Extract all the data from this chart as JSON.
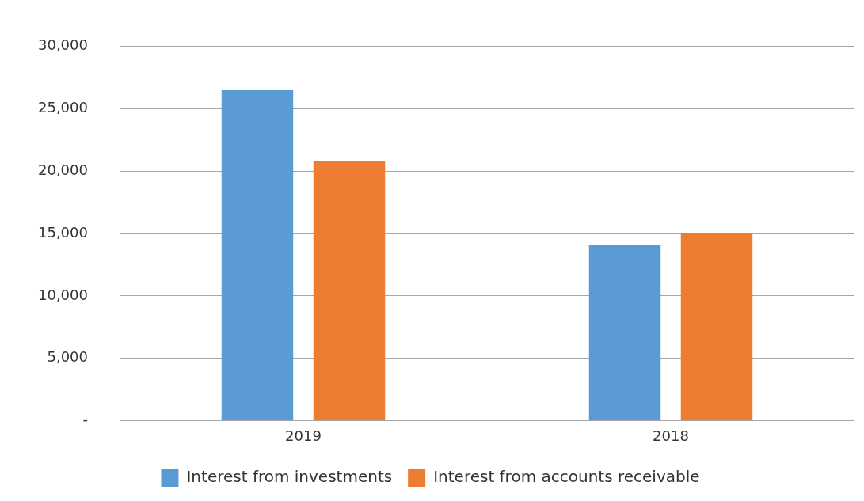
{
  "chart_data": {
    "type": "bar",
    "categories": [
      "2019",
      "2018"
    ],
    "series": [
      {
        "name": "Interest from investments",
        "color": "#5b9bd5",
        "values": [
          26500,
          14100
        ]
      },
      {
        "name": "Interest from accounts receivable",
        "color": "#ed7d31",
        "values": [
          20800,
          15000
        ]
      }
    ],
    "ylim": [
      0,
      30000
    ],
    "yticks": [
      {
        "value": 0,
        "label": "-"
      },
      {
        "value": 5000,
        "label": "5,000"
      },
      {
        "value": 10000,
        "label": "10,000"
      },
      {
        "value": 15000,
        "label": "15,000"
      },
      {
        "value": 20000,
        "label": "20,000"
      },
      {
        "value": 25000,
        "label": "25,000"
      },
      {
        "value": 30000,
        "label": "30,000"
      }
    ],
    "grid": "y",
    "legend": "bottom"
  }
}
